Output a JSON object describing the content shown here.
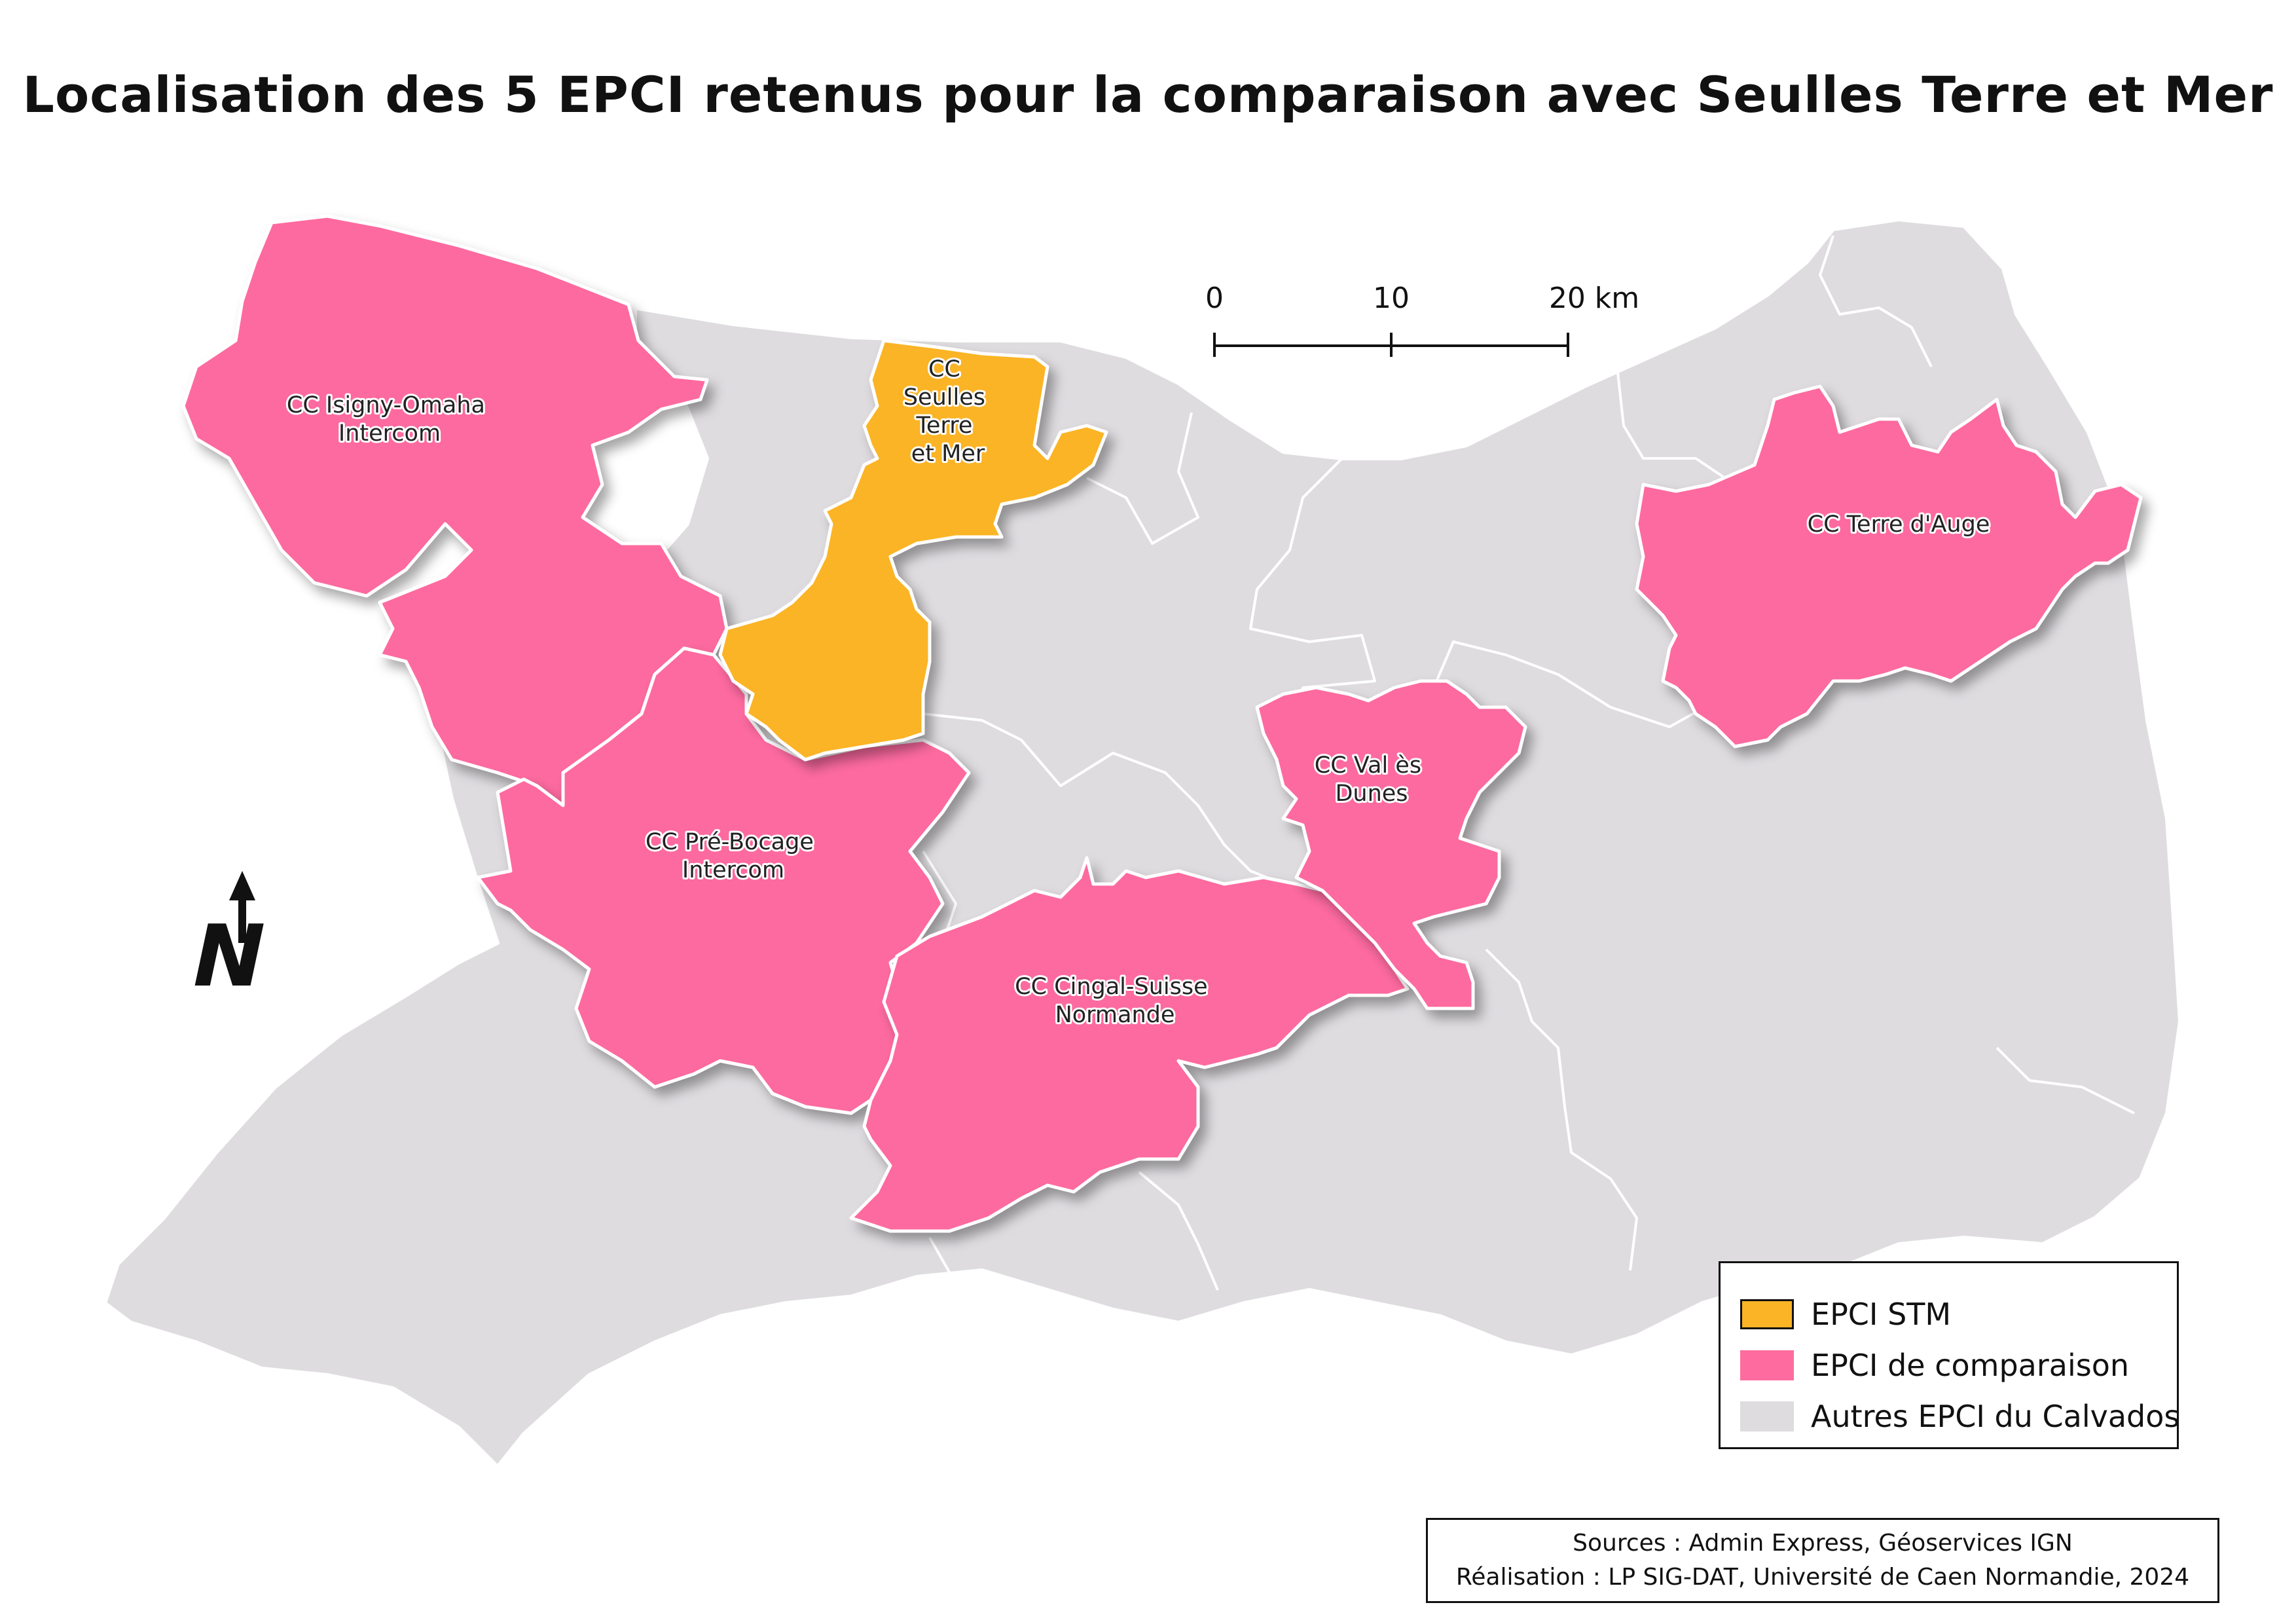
{
  "title": "Localisation des 5 EPCI retenus pour la comparaison avec Seulles Terre et Mer",
  "colors": {
    "stm": "#FBB426",
    "comparison": "#FD6B9F",
    "other": "#DEDCDF",
    "borders": "#ffffff"
  },
  "regions": {
    "isigny": {
      "line1": "CC Isigny-Omaha",
      "line2": "Intercom"
    },
    "stm": {
      "line1": "CC",
      "line2": "Seulles",
      "line3": "Terre",
      "line4": "et Mer"
    },
    "prebocage": {
      "line1": "CC Pré-Bocage",
      "line2": "Intercom"
    },
    "cingal": {
      "line1": "CC Cingal-Suisse",
      "line2": "Normande"
    },
    "valesdunes": {
      "line1": "CC Val ès",
      "line2": "Dunes"
    },
    "terredauge": {
      "line1": "CC Terre d'Auge"
    }
  },
  "scale_bar": {
    "ticks": [
      "0",
      "10",
      "20 km"
    ]
  },
  "north_arrow": {
    "letter": "N",
    "icon": "north-arrow-icon"
  },
  "legend": {
    "items": [
      {
        "label": "EPCI STM"
      },
      {
        "label": "EPCI de comparaison"
      },
      {
        "label": "Autres EPCI du Calvados"
      }
    ]
  },
  "credits": {
    "sources": "Sources : Admin Express, Géoservices IGN",
    "realisation": "Réalisation : LP SIG-DAT, Université de Caen Normandie, 2024"
  }
}
